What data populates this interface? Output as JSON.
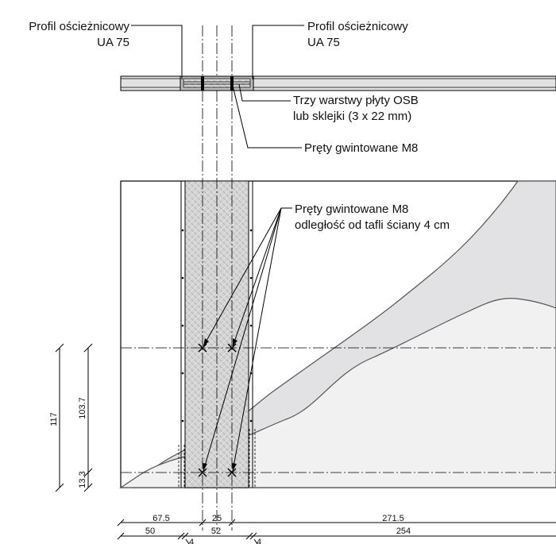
{
  "labels": {
    "frame_profile_left_line1": "Profil ościeżnicowy",
    "frame_profile_left_line2": "UA 75",
    "frame_profile_right_line1": "Profil ościeżnicowy",
    "frame_profile_right_line2": "UA 75",
    "osb_layers_line1": "Trzy warstwy płyty OSB",
    "osb_layers_line2": "lub sklejki (3 x 22 mm)",
    "threaded_rods_plan": "Pręty gwintowane M8",
    "threaded_rods_elev_line1": "Pręty gwintowane M8",
    "threaded_rods_elev_line2": "odległość od tafli ściany 4 cm"
  },
  "dimensions": {
    "vertical": [
      "117",
      "103.7",
      "13.3"
    ],
    "row1": [
      "67.5",
      "25",
      "271.5"
    ],
    "row2": [
      "50",
      "52",
      "254"
    ],
    "row3": [
      "4",
      "4"
    ]
  },
  "colors": {
    "dark_fill": "#e0e0e2",
    "light_fill": "#f0f0f0",
    "panel_fill": "#d2d2d2",
    "line": "#000000"
  }
}
